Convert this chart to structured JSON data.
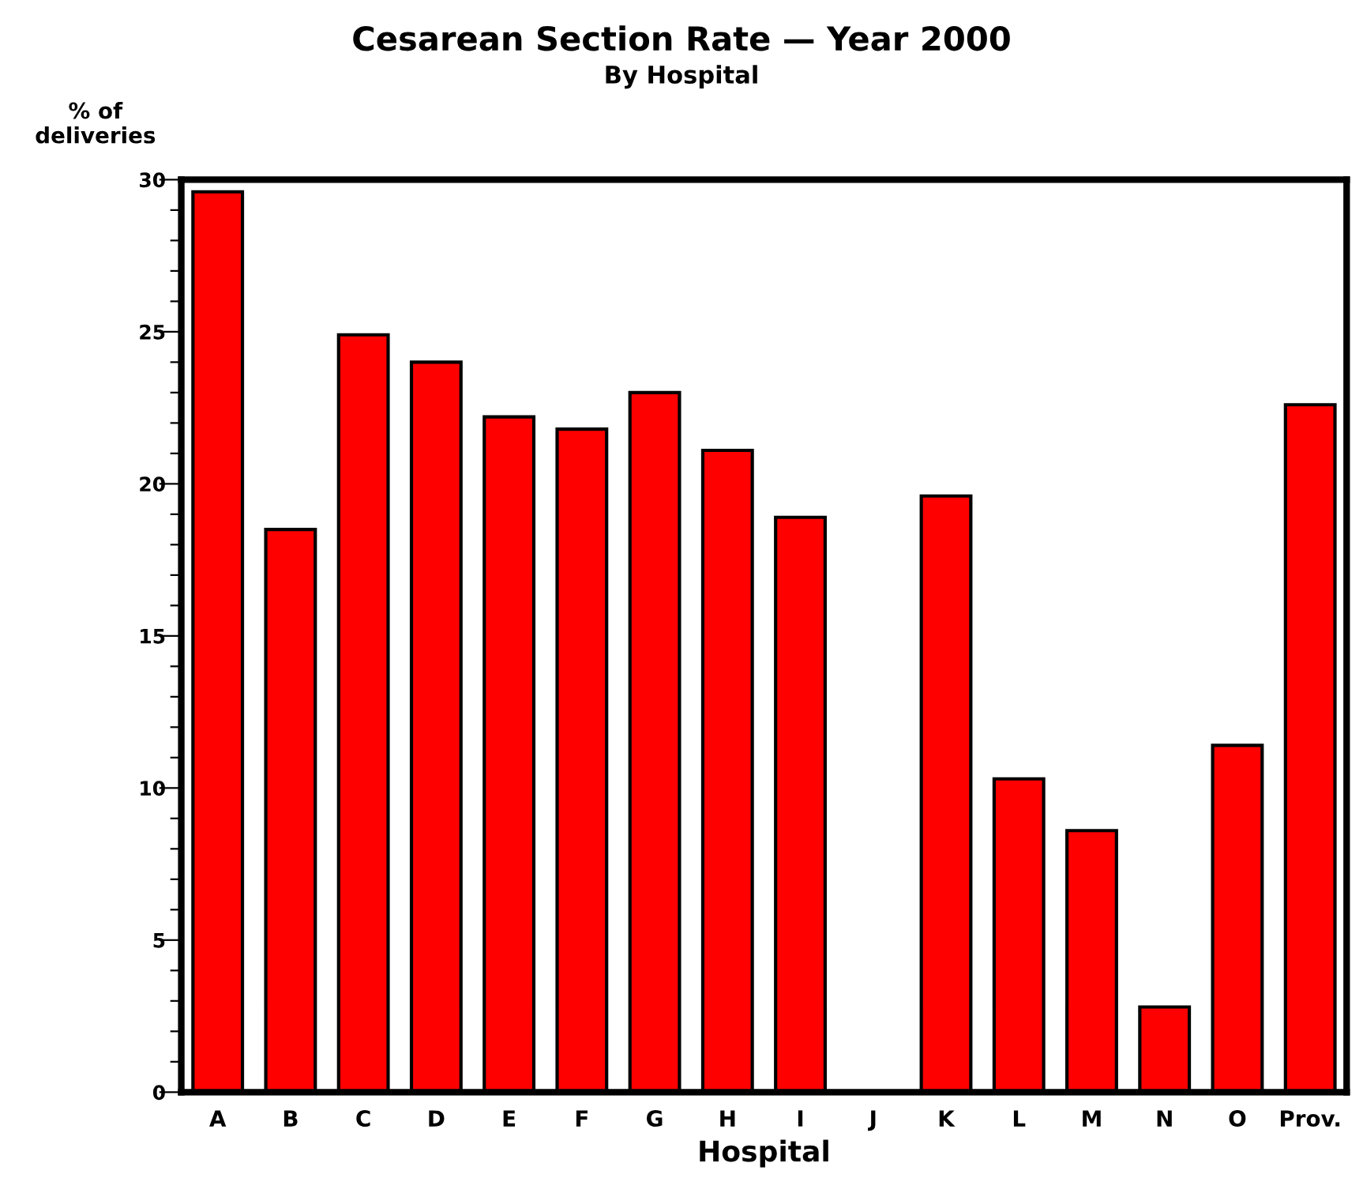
{
  "chart_data": {
    "type": "bar",
    "title": "Cesarean Section Rate — Year 2000",
    "subtitle": "By Hospital",
    "xlabel": "Hospital",
    "ylabel": "% of\ndeliveries",
    "categories": [
      "A",
      "B",
      "C",
      "D",
      "E",
      "F",
      "G",
      "H",
      "I",
      "J",
      "K",
      "L",
      "M",
      "N",
      "O",
      "Prov."
    ],
    "values": [
      29.6,
      18.5,
      24.9,
      24.0,
      22.2,
      21.8,
      23.0,
      21.1,
      18.9,
      null,
      19.6,
      10.3,
      8.6,
      2.8,
      11.4,
      22.6
    ],
    "color": "#ff0000",
    "ylim": [
      0,
      30
    ],
    "yticks": [
      0,
      {
        "value": 1,
        "label": null
      },
      {
        "value": 2,
        "label": null
      },
      {
        "value": 3,
        "label": null
      },
      {
        "value": 4,
        "label": null
      },
      5,
      {
        "value": 6,
        "label": null
      },
      {
        "value": 7,
        "label": null
      },
      {
        "value": 8,
        "label": null
      },
      {
        "value": 9,
        "label": null
      },
      10,
      {
        "value": 11,
        "label": null
      },
      {
        "value": 12,
        "label": null
      },
      {
        "value": 13,
        "label": null
      },
      {
        "value": 14,
        "label": null
      },
      15,
      {
        "value": 16,
        "label": null
      },
      {
        "value": 17,
        "label": null
      },
      {
        "value": 18,
        "label": null
      },
      {
        "value": 19,
        "label": null
      },
      20,
      {
        "value": 21,
        "label": null
      },
      {
        "value": 22,
        "label": null
      },
      {
        "value": 23,
        "label": null
      },
      {
        "value": 24,
        "label": null
      },
      25,
      {
        "value": 26,
        "label": null
      },
      {
        "value": 27,
        "label": null
      },
      {
        "value": 28,
        "label": null
      },
      {
        "value": 29,
        "label": null
      },
      30
    ],
    "grid": false,
    "legend": false
  }
}
